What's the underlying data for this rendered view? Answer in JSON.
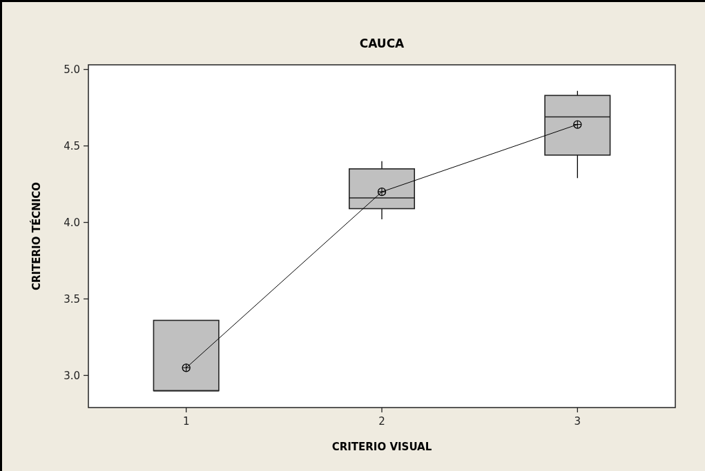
{
  "chart_data": {
    "type": "box",
    "title": "CAUCA",
    "xlabel": "CRITERIO VISUAL",
    "ylabel": "CRITERIO TÉCNICO",
    "categories": [
      "1",
      "2",
      "3"
    ],
    "boxes": [
      {
        "low": 2.9,
        "q1": 2.9,
        "median": 2.9,
        "q3": 3.36,
        "high": 3.36
      },
      {
        "low": 4.02,
        "q1": 4.09,
        "median": 4.16,
        "q3": 4.35,
        "high": 4.4
      },
      {
        "low": 4.29,
        "q1": 4.44,
        "median": 4.69,
        "q3": 4.83,
        "high": 4.86
      }
    ],
    "color": "#c0c0c0",
    "series": [
      {
        "type": "line",
        "color": "#000000",
        "values": [
          3.05,
          4.2,
          4.64
        ],
        "marker": "circle"
      }
    ],
    "ylim": [
      2.79,
      5.03
    ],
    "yticks": [
      {
        "value": 3,
        "label": "3.0"
      },
      {
        "value": 3.5,
        "label": "3.5"
      },
      {
        "value": 4,
        "label": "4.0"
      },
      {
        "value": 4.5,
        "label": "4.5"
      },
      {
        "value": 5,
        "label": "5.0"
      }
    ],
    "grid": false
  }
}
